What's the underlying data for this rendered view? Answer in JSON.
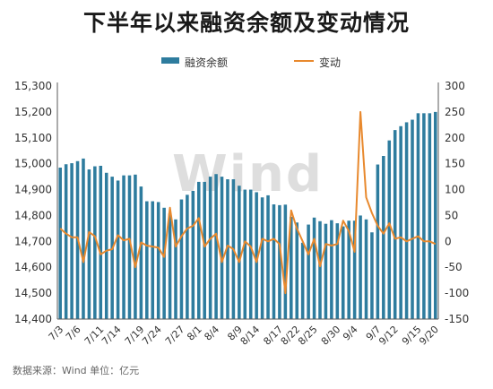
{
  "title": "下半年以来融资余额及变动情况",
  "watermark": "Wind",
  "source": "数据来源：Wind  单位：亿元",
  "colors": {
    "bar": "#2E7C9E",
    "line": "#E8892E",
    "axis": "#595959",
    "grid": "#d9d9d9"
  },
  "chart_data": {
    "type": "bar",
    "title": "下半年以来融资余额及变动情况",
    "legend_position": "top",
    "grid": false,
    "x_tick_labels": [
      "7/3",
      "7/6",
      "7/11",
      "7/14",
      "7/19",
      "7/24",
      "7/27",
      "8/1",
      "8/4",
      "8/9",
      "8/14",
      "8/17",
      "8/22",
      "8/25",
      "8/30",
      "9/4",
      "9/7",
      "9/12",
      "9/15",
      "9/20"
    ],
    "y_left": {
      "range": [
        14400,
        15300
      ],
      "ticks": [
        "14,400",
        "14,500",
        "14,600",
        "14,700",
        "14,800",
        "14,900",
        "15,000",
        "15,100",
        "15,200",
        "15,300"
      ]
    },
    "y_right": {
      "range": [
        -150,
        300
      ],
      "ticks": [
        "-150",
        "-100",
        "-50",
        "0",
        "50",
        "100",
        "150",
        "200",
        "250",
        "300"
      ]
    },
    "series": [
      {
        "name": "融资余额",
        "type": "bar",
        "axis": "left",
        "values": [
          14985,
          14998,
          15002,
          15010,
          15020,
          14978,
          14990,
          14992,
          14965,
          14950,
          14935,
          14955,
          14955,
          14958,
          14912,
          14855,
          14855,
          14852,
          14830,
          14808,
          14785,
          14862,
          14880,
          14895,
          14930,
          14930,
          14950,
          14960,
          14950,
          14940,
          14940,
          14915,
          14900,
          14900,
          14890,
          14870,
          14878,
          14843,
          14840,
          14842,
          14795,
          14773,
          14695,
          14765,
          14792,
          14778,
          14768,
          14782,
          14770,
          14758,
          14780,
          14780,
          14800,
          14785,
          14735,
          14997,
          15030,
          15090,
          15130,
          15145,
          15160,
          15170,
          15195,
          15195,
          15195,
          15200
        ]
      },
      {
        "name": "变动",
        "type": "line",
        "axis": "right",
        "values": [
          25,
          15,
          8,
          8,
          -40,
          18,
          10,
          -25,
          -18,
          -15,
          12,
          2,
          5,
          -50,
          -2,
          -8,
          -10,
          -12,
          -30,
          65,
          -10,
          10,
          25,
          30,
          45,
          -10,
          5,
          15,
          -40,
          -8,
          -15,
          -40,
          0,
          -10,
          -40,
          5,
          0,
          5,
          -5,
          -100,
          60,
          25,
          0,
          -25,
          5,
          -48,
          -5,
          -8,
          -5,
          40,
          20,
          -20,
          250,
          85,
          55,
          30,
          15,
          35,
          5,
          8,
          0,
          5,
          10,
          0,
          0,
          -5
        ]
      }
    ]
  }
}
